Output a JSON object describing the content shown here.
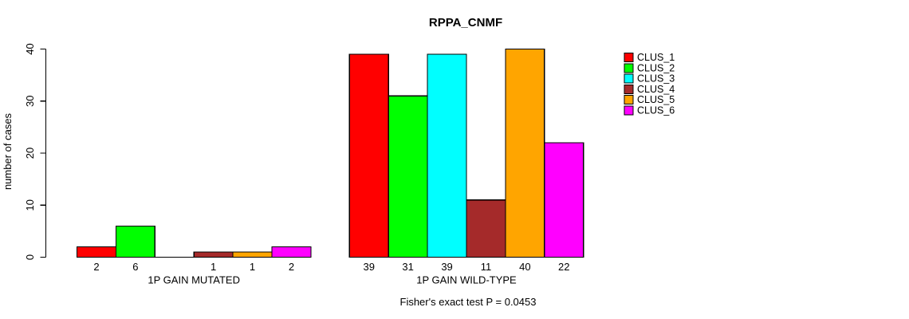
{
  "chart_data": {
    "type": "bar",
    "title": "RPPA_CNMF",
    "ylabel": "number of cases",
    "xlabel": "",
    "ylim": [
      0,
      40
    ],
    "yticks": [
      0,
      10,
      20,
      30,
      40
    ],
    "grid": false,
    "legend_position": "right",
    "categories": [
      "1P GAIN MUTATED",
      "1P GAIN WILD-TYPE"
    ],
    "series": [
      {
        "name": "CLUS_1",
        "color": "#FF0000",
        "values": [
          2,
          39
        ]
      },
      {
        "name": "CLUS_2",
        "color": "#00FF00",
        "values": [
          6,
          31
        ]
      },
      {
        "name": "CLUS_3",
        "color": "#00FFFF",
        "values": [
          0,
          39
        ]
      },
      {
        "name": "CLUS_4",
        "color": "#A52A2A",
        "values": [
          1,
          11
        ]
      },
      {
        "name": "CLUS_5",
        "color": "#FFA500",
        "values": [
          1,
          40
        ]
      },
      {
        "name": "CLUS_6",
        "color": "#FF00FF",
        "values": [
          2,
          22
        ]
      }
    ],
    "bar_value_labels": [
      [
        "2",
        "6",
        "",
        "1",
        "1",
        "2"
      ],
      [
        "39",
        "31",
        "39",
        "11",
        "40",
        "22"
      ]
    ],
    "footnote": "Fisher's exact test P = 0.0453",
    "axis_color": "#000000",
    "bar_border_color": "#000000"
  }
}
